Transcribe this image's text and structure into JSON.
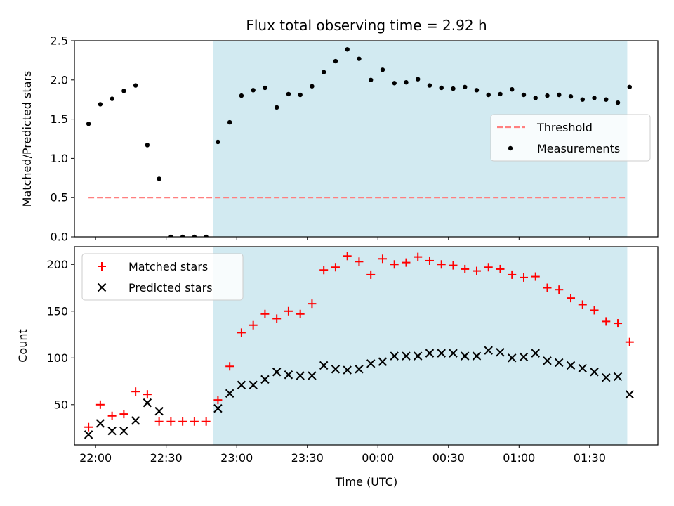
{
  "title": "Flux total observing time = 2.92 h",
  "xlabel": "Time (UTC)",
  "x_ticks": [
    "22:00",
    "22:30",
    "23:00",
    "23:30",
    "00:00",
    "00:30",
    "01:00",
    "01:30"
  ],
  "colors": {
    "shade": "#add8e6",
    "threshold": "#ff7f7f",
    "matched": "#ff0000",
    "predicted": "#000000",
    "measurements": "#000000"
  },
  "chart_data": [
    {
      "type": "scatter",
      "ylabel": "Matched/Predicted stars",
      "ylim": [
        0,
        2.5
      ],
      "y_ticks": [
        "0.0",
        "0.5",
        "1.0",
        "1.5",
        "2.0",
        "2.5"
      ],
      "shaded_span": [
        "22:50",
        "01:46"
      ],
      "legend": {
        "placement": "center-right",
        "entries": [
          "Threshold",
          "Measurements"
        ]
      },
      "threshold": {
        "name": "Threshold",
        "y": 0.5,
        "x_range": [
          "21:57",
          "01:46"
        ]
      },
      "series": [
        {
          "name": "Measurements",
          "x": [
            "21:57",
            "22:02",
            "22:07",
            "22:12",
            "22:17",
            "22:22",
            "22:27",
            "22:32",
            "22:37",
            "22:42",
            "22:47",
            "22:52",
            "22:57",
            "23:02",
            "23:07",
            "23:12",
            "23:17",
            "23:22",
            "23:27",
            "23:32",
            "23:37",
            "23:42",
            "23:47",
            "23:52",
            "23:57",
            "00:02",
            "00:07",
            "00:12",
            "00:17",
            "00:22",
            "00:27",
            "00:32",
            "00:37",
            "00:42",
            "00:47",
            "00:52",
            "00:57",
            "01:02",
            "01:07",
            "01:12",
            "01:17",
            "01:22",
            "01:27",
            "01:32",
            "01:37",
            "01:42",
            "01:47"
          ],
          "y": [
            1.44,
            1.69,
            1.76,
            1.86,
            1.93,
            1.17,
            0.74,
            0,
            0,
            0,
            0,
            1.21,
            1.46,
            1.8,
            1.87,
            1.9,
            1.65,
            1.82,
            1.81,
            1.92,
            2.1,
            2.24,
            2.39,
            2.27,
            2.0,
            2.13,
            1.96,
            1.97,
            2.01,
            1.93,
            1.9,
            1.89,
            1.91,
            1.87,
            1.81,
            1.82,
            1.88,
            1.81,
            1.77,
            1.8,
            1.81,
            1.79,
            1.75,
            1.77,
            1.75,
            1.71,
            1.91
          ]
        }
      ]
    },
    {
      "type": "scatter",
      "ylabel": "Count",
      "ylim": [
        7,
        219
      ],
      "y_ticks": [
        "50",
        "100",
        "150",
        "200"
      ],
      "shaded_span": [
        "22:50",
        "01:46"
      ],
      "legend": {
        "placement": "upper-left",
        "entries": [
          "Matched stars",
          "Predicted stars"
        ]
      },
      "series": [
        {
          "name": "Matched stars",
          "x": [
            "21:57",
            "22:02",
            "22:07",
            "22:12",
            "22:17",
            "22:22",
            "22:27",
            "22:32",
            "22:37",
            "22:42",
            "22:47",
            "22:52",
            "22:57",
            "23:02",
            "23:07",
            "23:12",
            "23:17",
            "23:22",
            "23:27",
            "23:32",
            "23:37",
            "23:42",
            "23:47",
            "23:52",
            "23:57",
            "00:02",
            "00:07",
            "00:12",
            "00:17",
            "00:22",
            "00:27",
            "00:32",
            "00:37",
            "00:42",
            "00:47",
            "00:52",
            "00:57",
            "01:02",
            "01:07",
            "01:12",
            "01:17",
            "01:22",
            "01:27",
            "01:32",
            "01:37",
            "01:42",
            "01:47"
          ],
          "y": [
            26,
            50,
            38,
            40,
            64,
            61,
            32,
            32,
            32,
            32,
            32,
            55,
            91,
            127,
            135,
            147,
            142,
            150,
            147,
            158,
            194,
            197,
            209,
            203,
            189,
            206,
            200,
            202,
            208,
            204,
            200,
            199,
            195,
            193,
            197,
            195,
            189,
            186,
            187,
            175,
            173,
            164,
            157,
            151,
            139,
            137,
            117
          ]
        },
        {
          "name": "Predicted stars",
          "x": [
            "21:57",
            "22:02",
            "22:07",
            "22:12",
            "22:17",
            "22:22",
            "22:27",
            "22:32",
            "22:37",
            "22:42",
            "22:47",
            "22:52",
            "22:57",
            "23:02",
            "23:07",
            "23:12",
            "23:17",
            "23:22",
            "23:27",
            "23:32",
            "23:37",
            "23:42",
            "23:47",
            "23:52",
            "23:57",
            "00:02",
            "00:07",
            "00:12",
            "00:17",
            "00:22",
            "00:27",
            "00:32",
            "00:37",
            "00:42",
            "00:47",
            "00:52",
            "00:57",
            "01:02",
            "01:07",
            "01:12",
            "01:17",
            "01:22",
            "01:27",
            "01:32",
            "01:37",
            "01:42",
            "01:47"
          ],
          "y": [
            18,
            30,
            22,
            22,
            33,
            52,
            43,
            null,
            null,
            null,
            null,
            46,
            62,
            71,
            71,
            77,
            85,
            82,
            81,
            81,
            92,
            88,
            87,
            88,
            94,
            96,
            102,
            102,
            102,
            105,
            105,
            105,
            102,
            102,
            108,
            106,
            100,
            101,
            105,
            97,
            95,
            92,
            89,
            85,
            79,
            80,
            61
          ]
        }
      ]
    }
  ]
}
